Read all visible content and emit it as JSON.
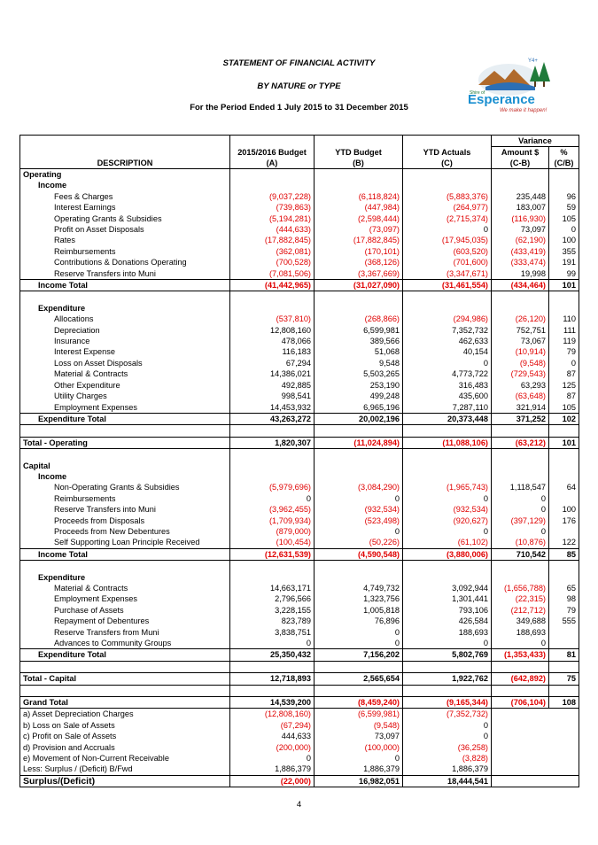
{
  "header": {
    "line1": "STATEMENT OF FINANCIAL ACTIVITY",
    "line2": "BY NATURE or TYPE",
    "line3": "For the Period Ended 1 July 2015 to 31 December 2015"
  },
  "logo": {
    "top_text": "Y4+",
    "name_small": "Shire of",
    "name": "Esperance",
    "tagline": "We make it happen!"
  },
  "columns": {
    "variance": "Variance",
    "description": "DESCRIPTION",
    "budget": "2015/2016 Budget",
    "budget_sub": "(A)",
    "ytd_budget": "YTD Budget",
    "ytd_budget_sub": "(B)",
    "ytd_actuals": "YTD Actuals",
    "ytd_actuals_sub": "(C)",
    "amount": "Amount $",
    "amount_sub": "(C-B)",
    "pct": "%",
    "pct_sub": "(C/B)"
  },
  "rows": [
    {
      "type": "section",
      "label": "Operating"
    },
    {
      "type": "sub",
      "label": "Income"
    },
    {
      "type": "item",
      "label": "Fees & Charges",
      "a": "(9,037,228)",
      "b": "(6,118,824)",
      "c": "(5,883,376)",
      "d": "235,448",
      "e": "96"
    },
    {
      "type": "item",
      "label": "Interest Earnings",
      "a": "(739,863)",
      "b": "(447,984)",
      "c": "(264,977)",
      "d": "183,007",
      "e": "59"
    },
    {
      "type": "item",
      "label": "Operating Grants & Subsidies",
      "a": "(5,194,281)",
      "b": "(2,598,444)",
      "c": "(2,715,374)",
      "d": "(116,930)",
      "e": "105"
    },
    {
      "type": "item",
      "label": "Profit on Asset Disposals",
      "a": "(444,633)",
      "b": "(73,097)",
      "c": "0",
      "d": "73,097",
      "e": "0"
    },
    {
      "type": "item",
      "label": "Rates",
      "a": "(17,882,845)",
      "b": "(17,882,845)",
      "c": "(17,945,035)",
      "d": "(62,190)",
      "e": "100"
    },
    {
      "type": "item",
      "label": "Reimbursements",
      "a": "(362,081)",
      "b": "(170,101)",
      "c": "(603,520)",
      "d": "(433,419)",
      "e": "355"
    },
    {
      "type": "item",
      "label": "Contributions & Donations Operating",
      "a": "(700,528)",
      "b": "(368,126)",
      "c": "(701,600)",
      "d": "(333,474)",
      "e": "191"
    },
    {
      "type": "item",
      "label": "Reserve Transfers into Muni",
      "a": "(7,081,506)",
      "b": "(3,367,669)",
      "c": "(3,347,671)",
      "d": "19,998",
      "e": "99"
    },
    {
      "type": "total",
      "label": "Income Total",
      "a": "(41,442,965)",
      "b": "(31,027,090)",
      "c": "(31,461,554)",
      "d": "(434,464)",
      "e": "101"
    },
    {
      "type": "blank"
    },
    {
      "type": "sub",
      "label": "Expenditure"
    },
    {
      "type": "item",
      "label": "Allocations",
      "a": "(537,810)",
      "b": "(268,866)",
      "c": "(294,986)",
      "d": "(26,120)",
      "e": "110"
    },
    {
      "type": "item",
      "label": "Depreciation",
      "a": "12,808,160",
      "b": "6,599,981",
      "c": "7,352,732",
      "d": "752,751",
      "e": "111"
    },
    {
      "type": "item",
      "label": "Insurance",
      "a": "478,066",
      "b": "389,566",
      "c": "462,633",
      "d": "73,067",
      "e": "119"
    },
    {
      "type": "item",
      "label": "Interest Expense",
      "a": "116,183",
      "b": "51,068",
      "c": "40,154",
      "d": "(10,914)",
      "e": "79"
    },
    {
      "type": "item",
      "label": "Loss on Asset Disposals",
      "a": "67,294",
      "b": "9,548",
      "c": "0",
      "d": "(9,548)",
      "e": "0"
    },
    {
      "type": "item",
      "label": "Material & Contracts",
      "a": "14,386,021",
      "b": "5,503,265",
      "c": "4,773,722",
      "d": "(729,543)",
      "e": "87"
    },
    {
      "type": "item",
      "label": "Other Expenditure",
      "a": "492,885",
      "b": "253,190",
      "c": "316,483",
      "d": "63,293",
      "e": "125"
    },
    {
      "type": "item",
      "label": "Utility Charges",
      "a": "998,541",
      "b": "499,248",
      "c": "435,600",
      "d": "(63,648)",
      "e": "87"
    },
    {
      "type": "item",
      "label": "Employment Expenses",
      "a": "14,453,932",
      "b": "6,965,196",
      "c": "7,287,110",
      "d": "321,914",
      "e": "105"
    },
    {
      "type": "total",
      "label": "Expenditure Total",
      "a": "43,263,272",
      "b": "20,002,196",
      "c": "20,373,448",
      "d": "371,252",
      "e": "102"
    },
    {
      "type": "blank"
    },
    {
      "type": "grand",
      "label": "Total - Operating",
      "a": "1,820,307",
      "b": "(11,024,894)",
      "c": "(11,088,106)",
      "d": "(63,212)",
      "e": "101"
    },
    {
      "type": "blank"
    },
    {
      "type": "section",
      "label": "Capital"
    },
    {
      "type": "sub",
      "label": "Income"
    },
    {
      "type": "item",
      "label": "Non-Operating Grants & Subsidies",
      "a": "(5,979,696)",
      "b": "(3,084,290)",
      "c": "(1,965,743)",
      "d": "1,118,547",
      "e": "64"
    },
    {
      "type": "item",
      "label": "Reimbursements",
      "a": "0",
      "b": "0",
      "c": "0",
      "d": "0",
      "e": ""
    },
    {
      "type": "item",
      "label": "Reserve Transfers into Muni",
      "a": "(3,962,455)",
      "b": "(932,534)",
      "c": "(932,534)",
      "d": "0",
      "e": "100"
    },
    {
      "type": "item",
      "label": "Proceeds from Disposals",
      "a": "(1,709,934)",
      "b": "(523,498)",
      "c": "(920,627)",
      "d": "(397,129)",
      "e": "176"
    },
    {
      "type": "item",
      "label": "Proceeds from New Debentures",
      "a": "(879,000)",
      "b": "0",
      "c": "0",
      "d": "0",
      "e": ""
    },
    {
      "type": "item",
      "label": "Self Supporting Loan Principle Received",
      "a": "(100,454)",
      "b": "(50,226)",
      "c": "(61,102)",
      "d": "(10,876)",
      "e": "122"
    },
    {
      "type": "total",
      "label": "Income Total",
      "a": "(12,631,539)",
      "b": "(4,590,548)",
      "c": "(3,880,006)",
      "d": "710,542",
      "e": "85"
    },
    {
      "type": "blank"
    },
    {
      "type": "sub",
      "label": "Expenditure"
    },
    {
      "type": "item",
      "label": "Material & Contracts",
      "a": "14,663,171",
      "b": "4,749,732",
      "c": "3,092,944",
      "d": "(1,656,788)",
      "e": "65"
    },
    {
      "type": "item",
      "label": "Employment Expenses",
      "a": "2,796,566",
      "b": "1,323,756",
      "c": "1,301,441",
      "d": "(22,315)",
      "e": "98"
    },
    {
      "type": "item",
      "label": "Purchase of Assets",
      "a": "3,228,155",
      "b": "1,005,818",
      "c": "793,106",
      "d": "(212,712)",
      "e": "79"
    },
    {
      "type": "item",
      "label": "Repayment of Debentures",
      "a": "823,789",
      "b": "76,896",
      "c": "426,584",
      "d": "349,688",
      "e": "555"
    },
    {
      "type": "item",
      "label": "Reserve Transfers from Muni",
      "a": "3,838,751",
      "b": "0",
      "c": "188,693",
      "d": "188,693",
      "e": ""
    },
    {
      "type": "item",
      "label": "Advances to Community Groups",
      "a": "0",
      "b": "0",
      "c": "0",
      "d": "0",
      "e": ""
    },
    {
      "type": "total",
      "label": "Expenditure Total",
      "a": "25,350,432",
      "b": "7,156,202",
      "c": "5,802,769",
      "d": "(1,353,433)",
      "e": "81"
    },
    {
      "type": "blank"
    },
    {
      "type": "grand",
      "label": "Total - Capital",
      "a": "12,718,893",
      "b": "2,565,654",
      "c": "1,922,762",
      "d": "(642,892)",
      "e": "75"
    },
    {
      "type": "blank"
    },
    {
      "type": "grandtotal",
      "label": "Grand Total",
      "a": "14,539,200",
      "b": "(8,459,240)",
      "c": "(9,165,344)",
      "d": "(706,104)",
      "e": "108"
    },
    {
      "type": "adj",
      "label": "a) Asset Depreciation Charges",
      "a": "(12,808,160)",
      "b": "(6,599,981)",
      "c": "(7,352,732)"
    },
    {
      "type": "adj",
      "label": "b) Loss on Sale of Assets",
      "a": "(67,294)",
      "b": "(9,548)",
      "c": "0"
    },
    {
      "type": "adj",
      "label": "c) Profit on Sale of Assets",
      "a": "444,633",
      "b": "73,097",
      "c": "0"
    },
    {
      "type": "adj",
      "label": "d) Provision and Accruals",
      "a": "(200,000)",
      "b": "(100,000)",
      "c": "(36,258)"
    },
    {
      "type": "adj",
      "label": "e) Movement of Non-Current Receivable",
      "a": "0",
      "b": "0",
      "c": "(3,828)"
    },
    {
      "type": "adj",
      "label": "Less: Surplus / (Deficit) B/Fwd",
      "a": "1,886,379",
      "b": "1,886,379",
      "c": "1,886,379"
    },
    {
      "type": "final",
      "label": "Surplus/(Deficit)",
      "a": "(22,000)",
      "b": "16,982,051",
      "c": "18,444,541"
    }
  ],
  "page_number": "4"
}
